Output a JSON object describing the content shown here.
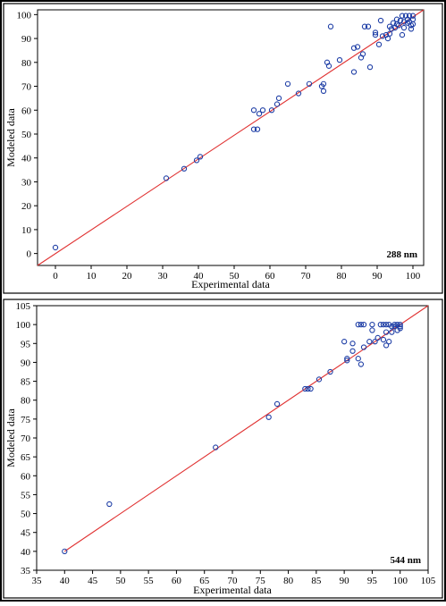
{
  "chart_data": [
    {
      "type": "scatter",
      "tag": "288 nm",
      "xlabel": "Experimental data",
      "ylabel": "Modeled data",
      "xlim": [
        -5,
        103
      ],
      "ylim": [
        -5,
        102
      ],
      "xticks": [
        0,
        10,
        20,
        30,
        40,
        50,
        60,
        70,
        80,
        90,
        100
      ],
      "yticks": [
        0,
        10,
        20,
        30,
        40,
        50,
        60,
        70,
        80,
        90,
        100
      ],
      "grid": false,
      "fit_line": {
        "from": [
          -5,
          -5
        ],
        "to": [
          103,
          102
        ],
        "color": "#e03131"
      },
      "point_color": "#1f3fa6",
      "points": [
        [
          0,
          2.5
        ],
        [
          31,
          31.5
        ],
        [
          36,
          35.5
        ],
        [
          39.5,
          39
        ],
        [
          40.5,
          40.5
        ],
        [
          55.5,
          60
        ],
        [
          55.5,
          52
        ],
        [
          56.5,
          52
        ],
        [
          57,
          58.5
        ],
        [
          58,
          60
        ],
        [
          60.5,
          60
        ],
        [
          62,
          62.5
        ],
        [
          62.5,
          65
        ],
        [
          65,
          71
        ],
        [
          68,
          67
        ],
        [
          71,
          71
        ],
        [
          74.5,
          70
        ],
        [
          75,
          71
        ],
        [
          75,
          68
        ],
        [
          76,
          80
        ],
        [
          76.5,
          78.5
        ],
        [
          77,
          95
        ],
        [
          79.5,
          81
        ],
        [
          83.5,
          86
        ],
        [
          83.5,
          76
        ],
        [
          84.5,
          86.5
        ],
        [
          85.5,
          82
        ],
        [
          86,
          83.5
        ],
        [
          86.5,
          95
        ],
        [
          87.5,
          95
        ],
        [
          88,
          78
        ],
        [
          89.5,
          91.5
        ],
        [
          89.5,
          92.5
        ],
        [
          90.5,
          87.5
        ],
        [
          91,
          97.5
        ],
        [
          91.5,
          91
        ],
        [
          92.5,
          91.5
        ],
        [
          93,
          90
        ],
        [
          93.5,
          92
        ],
        [
          93.5,
          95
        ],
        [
          94,
          94
        ],
        [
          94.5,
          96.5
        ],
        [
          95,
          94.5
        ],
        [
          95.5,
          96
        ],
        [
          95.5,
          98
        ],
        [
          96,
          95.5
        ],
        [
          96.5,
          97.5
        ],
        [
          97,
          99.5
        ],
        [
          97,
          91.5
        ],
        [
          97.5,
          97
        ],
        [
          97.5,
          94.5
        ],
        [
          98,
          99.5
        ],
        [
          98.5,
          96.5
        ],
        [
          98.5,
          98
        ],
        [
          99,
          99.5
        ],
        [
          99,
          97
        ],
        [
          99.5,
          95.5
        ],
        [
          99.5,
          94
        ],
        [
          100,
          99.5
        ],
        [
          100,
          98
        ],
        [
          100,
          96
        ]
      ]
    },
    {
      "type": "scatter",
      "tag": "544 nm",
      "xlabel": "Experimental data",
      "ylabel": "Modeled data",
      "xlim": [
        35,
        105
      ],
      "ylim": [
        35,
        105
      ],
      "xticks": [
        35,
        40,
        45,
        50,
        55,
        60,
        65,
        70,
        75,
        80,
        85,
        90,
        95,
        100,
        105
      ],
      "yticks": [
        35,
        40,
        45,
        50,
        55,
        60,
        65,
        70,
        75,
        80,
        85,
        90,
        95,
        100,
        105
      ],
      "grid": false,
      "fit_line": {
        "from": [
          40,
          40
        ],
        "to": [
          105,
          105
        ],
        "color": "#e03131"
      },
      "point_color": "#1f3fa6",
      "points": [
        [
          40,
          40
        ],
        [
          48,
          52.5
        ],
        [
          67,
          67.5
        ],
        [
          76.5,
          75.5
        ],
        [
          78,
          79
        ],
        [
          83,
          83
        ],
        [
          83.5,
          83
        ],
        [
          84,
          83
        ],
        [
          85.5,
          85.5
        ],
        [
          87.5,
          87.5
        ],
        [
          90,
          95.5
        ],
        [
          90.5,
          91
        ],
        [
          90.5,
          90.5
        ],
        [
          91.5,
          95
        ],
        [
          91.5,
          93
        ],
        [
          92.5,
          100
        ],
        [
          92.5,
          91
        ],
        [
          93,
          100
        ],
        [
          93,
          89.5
        ],
        [
          93.5,
          100
        ],
        [
          93.5,
          94
        ],
        [
          94.5,
          95.5
        ],
        [
          95,
          100
        ],
        [
          95,
          98.5
        ],
        [
          95.5,
          95.5
        ],
        [
          96,
          96.5
        ],
        [
          96.5,
          100
        ],
        [
          97,
          100
        ],
        [
          97,
          96
        ],
        [
          97.5,
          100
        ],
        [
          97.5,
          98
        ],
        [
          97.5,
          94.5
        ],
        [
          98,
          100
        ],
        [
          98,
          95.5
        ],
        [
          98.5,
          99.5
        ],
        [
          98.5,
          98
        ],
        [
          99,
          100
        ],
        [
          99,
          99.5
        ],
        [
          99.5,
          100
        ],
        [
          99.5,
          98.5
        ],
        [
          100,
          100
        ],
        [
          100,
          99.5
        ],
        [
          100,
          99
        ]
      ]
    }
  ]
}
